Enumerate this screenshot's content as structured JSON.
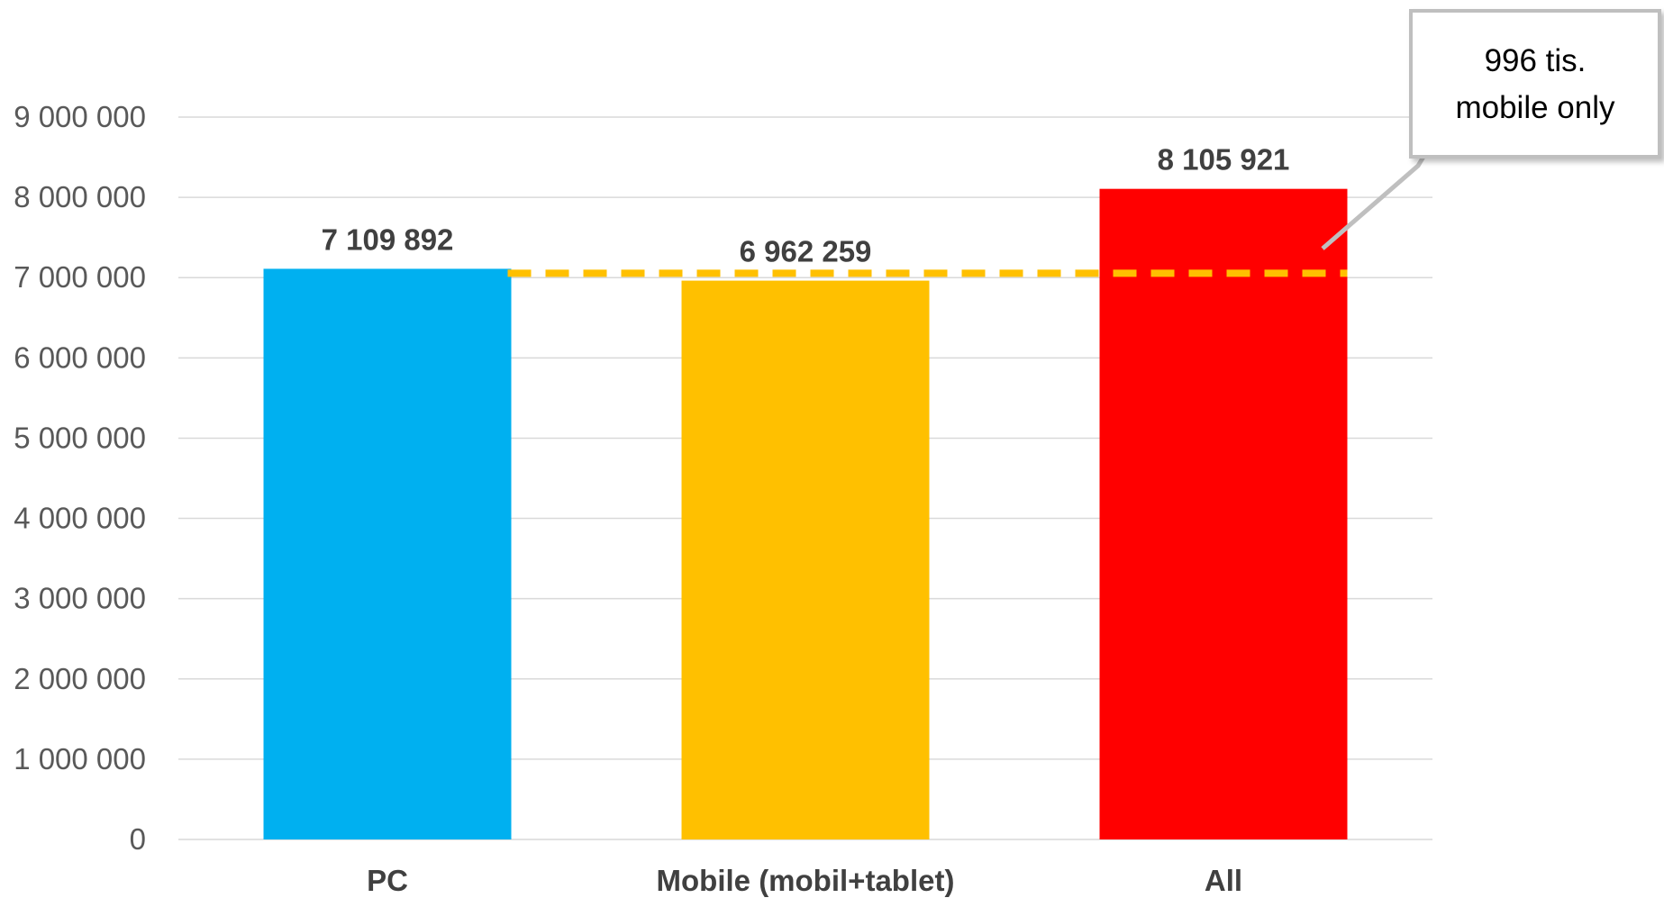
{
  "chart_data": {
    "type": "bar",
    "title": "",
    "xlabel": "",
    "ylabel": "",
    "ylim": [
      0,
      9000000
    ],
    "yticks": [
      0,
      1000000,
      2000000,
      3000000,
      4000000,
      5000000,
      6000000,
      7000000,
      8000000,
      9000000
    ],
    "ytick_labels": [
      "0",
      "1 000 000",
      "2 000 000",
      "3 000 000",
      "4 000 000",
      "5 000 000",
      "6 000 000",
      "7 000 000",
      "8 000 000",
      "9 000 000"
    ],
    "grid": true,
    "categories": [
      "PC",
      "Mobile (mobil+tablet)",
      "All"
    ],
    "values": [
      7109892,
      6962259,
      8105921
    ],
    "value_labels": [
      "7 109 892",
      "6 962 259",
      "8 105 921"
    ],
    "colors": [
      "#00B0F0",
      "#FFC000",
      "#FF0000"
    ],
    "reference_line": {
      "value": 7109892,
      "color": "#FFC000",
      "style": "dashed"
    },
    "annotation": {
      "lines": [
        "996 tis.",
        "mobile only"
      ],
      "placement": "top-right",
      "border_color": "#BFBFBF"
    }
  }
}
